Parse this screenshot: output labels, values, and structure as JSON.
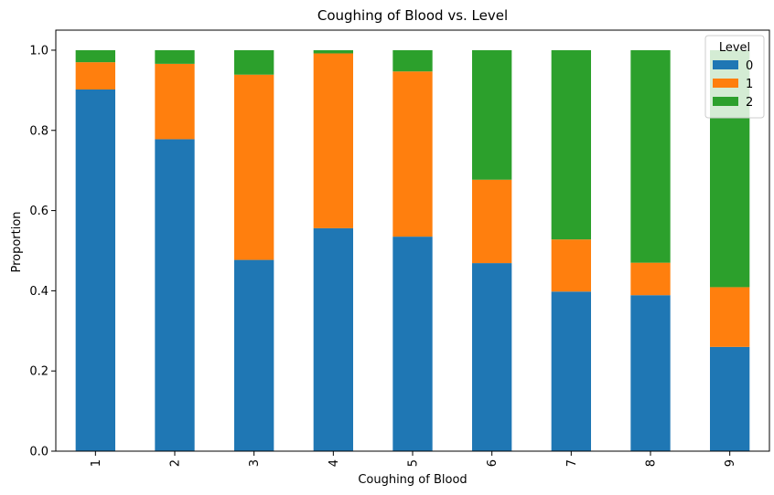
{
  "chart_data": {
    "type": "bar",
    "stacked": true,
    "title": "Coughing of Blood vs. Level",
    "xlabel": "Coughing of Blood",
    "ylabel": "Proportion",
    "ylim": [
      0,
      1.05
    ],
    "yticks": [
      "0.0",
      "0.2",
      "0.4",
      "0.6",
      "0.8",
      "1.0"
    ],
    "categories": [
      "1",
      "2",
      "3",
      "4",
      "5",
      "6",
      "7",
      "8",
      "9"
    ],
    "legend": {
      "title": "Level",
      "placement": "top-right"
    },
    "series": [
      {
        "name": "0",
        "color": "#1f77b4",
        "values": [
          0.902,
          0.778,
          0.477,
          0.556,
          0.535,
          0.469,
          0.398,
          0.389,
          0.26
        ]
      },
      {
        "name": "1",
        "color": "#ff7f0e",
        "values": [
          0.068,
          0.188,
          0.462,
          0.436,
          0.412,
          0.208,
          0.13,
          0.081,
          0.149
        ]
      },
      {
        "name": "2",
        "color": "#2ca02c",
        "values": [
          0.03,
          0.034,
          0.061,
          0.008,
          0.053,
          0.323,
          0.472,
          0.53,
          0.591
        ]
      }
    ],
    "grid": false
  }
}
